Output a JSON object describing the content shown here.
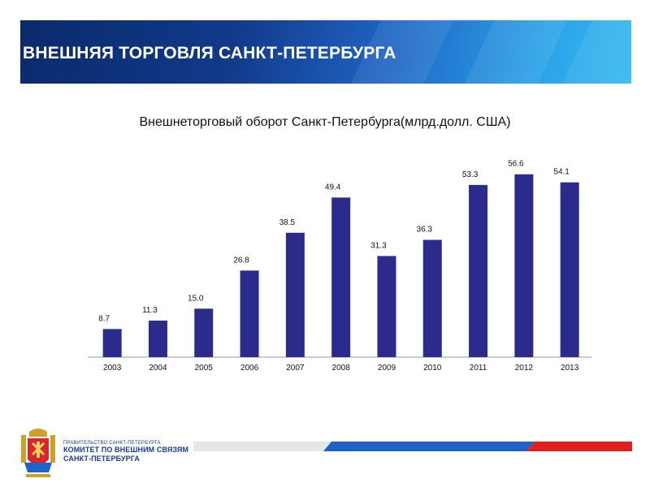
{
  "header": {
    "title": "ВНЕШНЯЯ ТОРГОВЛЯ САНКТ-ПЕТЕРБУРГА"
  },
  "chart_data": {
    "type": "bar",
    "title": "Внешнеторговый оборот Санкт-Петербурга(млрд.долл. США)",
    "categories": [
      "2003",
      "2004",
      "2005",
      "2006",
      "2007",
      "2008",
      "2009",
      "2010",
      "2011",
      "2012",
      "2013"
    ],
    "values": [
      8.7,
      11.3,
      15.0,
      26.8,
      38.5,
      49.4,
      31.3,
      36.3,
      53.3,
      56.6,
      54.1
    ],
    "value_labels": [
      "8.7",
      "11.3",
      "15.0",
      "26.8",
      "38.5",
      "49.4",
      "31.3",
      "36.3",
      "53.3",
      "56.6",
      "54.1"
    ],
    "bar_color": "#2b2b8c",
    "xlabel": "",
    "ylabel": "",
    "grid": false,
    "legend": "none"
  },
  "footer": {
    "org_small": "ПРАВИТЕЛЬСТВО САНКТ-ПЕТЕРБУРГА",
    "org_line1": "КОМИТЕТ ПО ВНЕШНИМ СВЯЗЯМ",
    "org_line2": "САНКТ-ПЕТЕРБУРГА",
    "logo_icon": "coat-of-arms-icon",
    "accent_blue": "#1f64c4",
    "accent_red": "#e02020"
  }
}
